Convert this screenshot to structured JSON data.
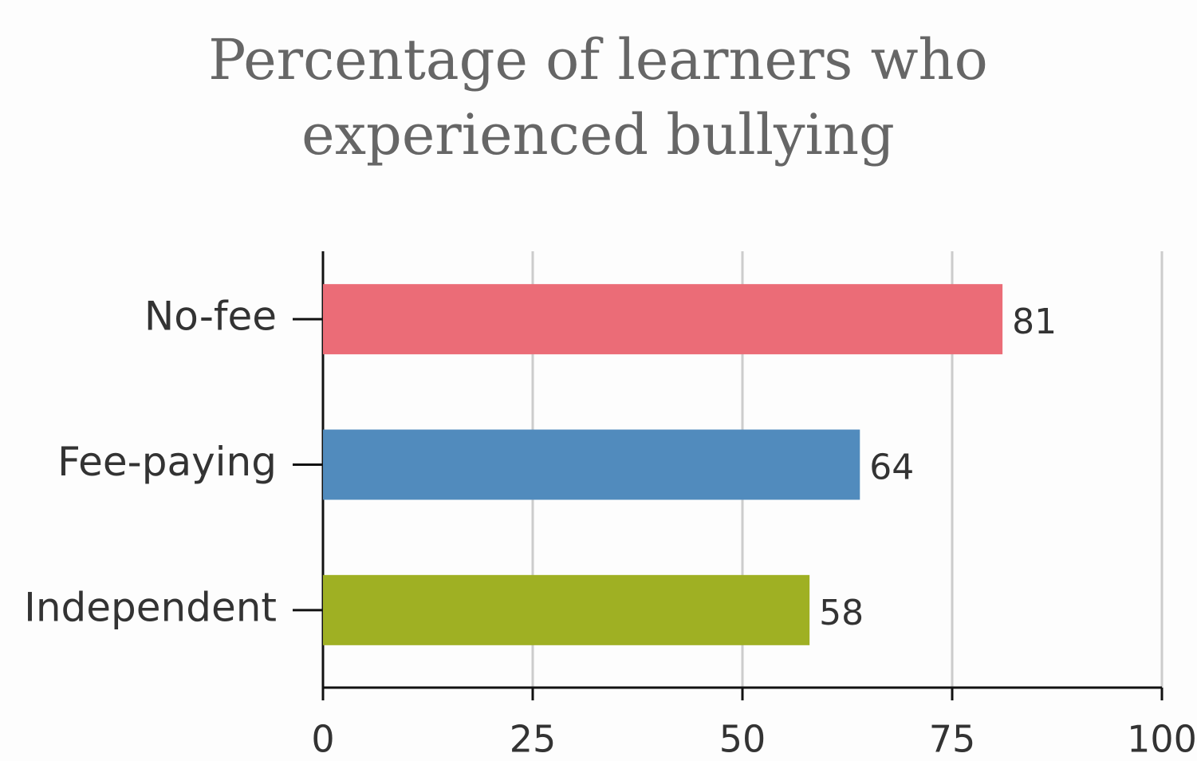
{
  "chart_data": {
    "type": "bar",
    "orientation": "horizontal",
    "title": "Percentage of learners who experienced bullying",
    "categories": [
      "No-fee",
      "Fee-paying",
      "Independent"
    ],
    "values": [
      81,
      64,
      58
    ],
    "colors": [
      "#eb6c77",
      "#518bbd",
      "#9fb023"
    ],
    "xlim": [
      0,
      100
    ],
    "xticks": [
      0,
      25,
      50,
      75,
      100
    ],
    "grid": true
  }
}
